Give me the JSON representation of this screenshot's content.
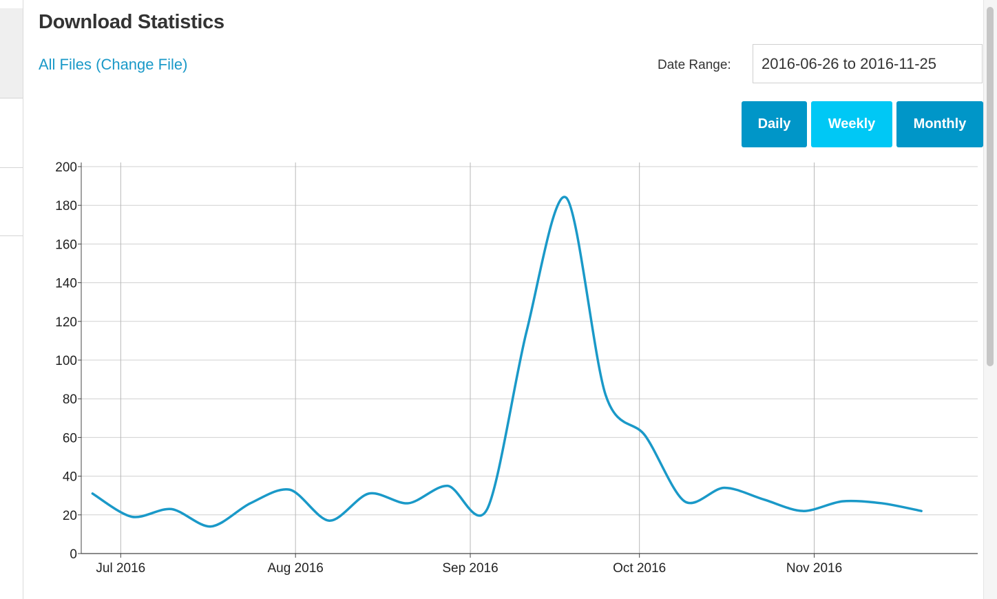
{
  "header": {
    "title": "Download Statistics",
    "file_link": "All Files (Change File)"
  },
  "date_range": {
    "label": "Date Range:",
    "value": "2016-06-26 to 2016-11-25"
  },
  "period_buttons": {
    "daily": "Daily",
    "weekly": "Weekly",
    "monthly": "Monthly",
    "active": "weekly"
  },
  "colors": {
    "accent": "#0096c8",
    "active_button": "#00c8f5",
    "line": "#1a99c8",
    "link": "#1a99c8"
  },
  "chart_data": {
    "type": "line",
    "title": "",
    "xlabel": "",
    "ylabel": "",
    "ylim": [
      0,
      200
    ],
    "y_ticks": [
      0,
      20,
      40,
      60,
      80,
      100,
      120,
      140,
      160,
      180,
      200
    ],
    "xlim": [
      "2016-06-24",
      "2016-11-30"
    ],
    "x_ticks": [
      {
        "date": "2016-07-01",
        "label": "Jul 2016"
      },
      {
        "date": "2016-08-01",
        "label": "Aug 2016"
      },
      {
        "date": "2016-09-01",
        "label": "Sep 2016"
      },
      {
        "date": "2016-10-01",
        "label": "Oct 2016"
      },
      {
        "date": "2016-11-01",
        "label": "Nov 2016"
      }
    ],
    "grid": true,
    "series": [
      {
        "x": [
          "2016-06-26",
          "2016-07-03",
          "2016-07-10",
          "2016-07-17",
          "2016-07-24",
          "2016-07-31",
          "2016-08-07",
          "2016-08-14",
          "2016-08-21",
          "2016-08-28",
          "2016-09-04",
          "2016-09-11",
          "2016-09-18",
          "2016-09-25",
          "2016-10-02",
          "2016-10-09",
          "2016-10-16",
          "2016-10-23",
          "2016-10-30",
          "2016-11-06",
          "2016-11-13",
          "2016-11-20"
        ],
        "y": [
          31,
          19,
          23,
          14,
          26,
          33,
          17,
          31,
          26,
          35,
          23,
          115,
          184,
          82,
          61,
          27,
          34,
          28,
          22,
          27,
          26,
          22
        ]
      }
    ]
  }
}
